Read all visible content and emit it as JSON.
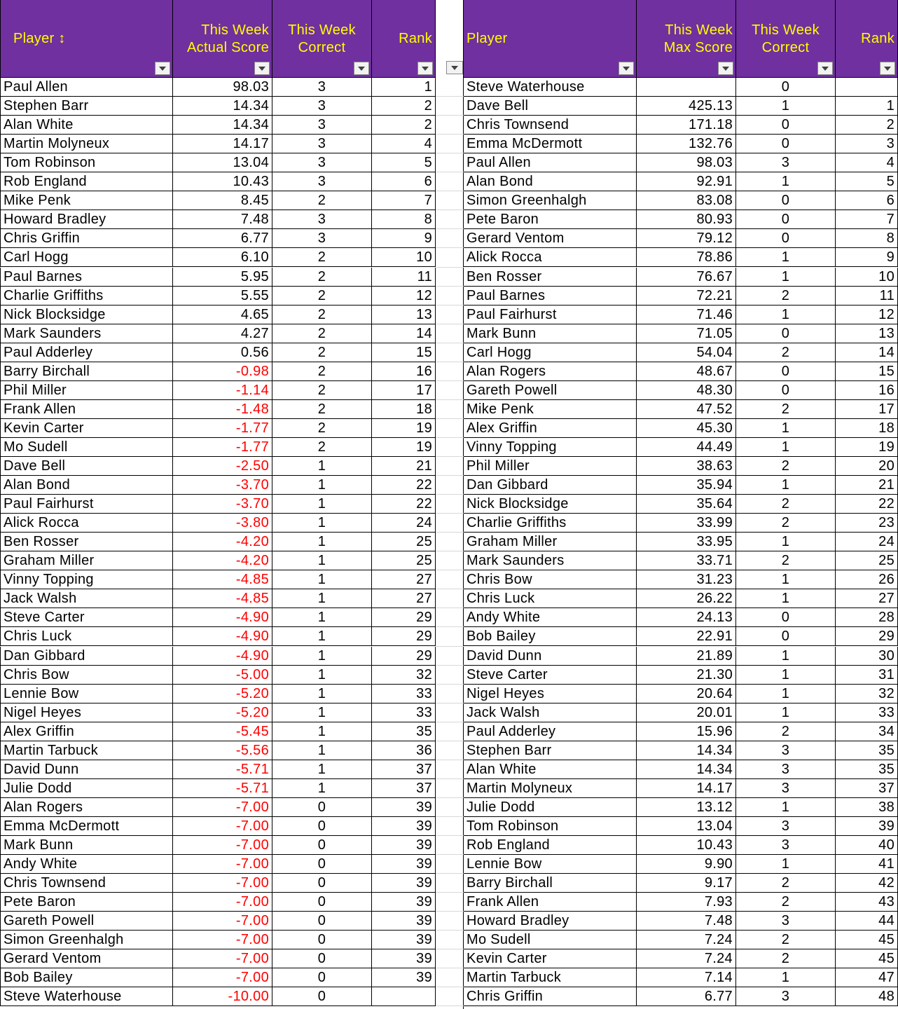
{
  "left_table": {
    "headers": {
      "player": "Player ↕",
      "actual_score": "This Week\nActual Score",
      "correct": "This Week\nCorrect",
      "rank": "Rank"
    },
    "rows": [
      [
        "Paul Allen",
        "98.03",
        "3",
        "1"
      ],
      [
        "Stephen Barr",
        "14.34",
        "3",
        "2"
      ],
      [
        "Alan White",
        "14.34",
        "3",
        "2"
      ],
      [
        "Martin Molyneux",
        "14.17",
        "3",
        "4"
      ],
      [
        "Tom Robinson",
        "13.04",
        "3",
        "5"
      ],
      [
        "Rob England",
        "10.43",
        "3",
        "6"
      ],
      [
        "Mike Penk",
        "8.45",
        "2",
        "7"
      ],
      [
        "Howard Bradley",
        "7.48",
        "3",
        "8"
      ],
      [
        "Chris Griffin",
        "6.77",
        "3",
        "9"
      ],
      [
        "Carl Hogg",
        "6.10",
        "2",
        "10"
      ],
      [
        "Paul Barnes",
        "5.95",
        "2",
        "11"
      ],
      [
        "Charlie Griffiths",
        "5.55",
        "2",
        "12"
      ],
      [
        "Nick Blocksidge",
        "4.65",
        "2",
        "13"
      ],
      [
        "Mark Saunders",
        "4.27",
        "2",
        "14"
      ],
      [
        "Paul Adderley",
        "0.56",
        "2",
        "15"
      ],
      [
        "Barry Birchall",
        "-0.98",
        "2",
        "16"
      ],
      [
        "Phil Miller",
        "-1.14",
        "2",
        "17"
      ],
      [
        "Frank Allen",
        "-1.48",
        "2",
        "18"
      ],
      [
        "Kevin Carter",
        "-1.77",
        "2",
        "19"
      ],
      [
        "Mo Sudell",
        "-1.77",
        "2",
        "19"
      ],
      [
        "Dave Bell",
        "-2.50",
        "1",
        "21"
      ],
      [
        "Alan Bond",
        "-3.70",
        "1",
        "22"
      ],
      [
        "Paul Fairhurst",
        "-3.70",
        "1",
        "22"
      ],
      [
        "Alick Rocca",
        "-3.80",
        "1",
        "24"
      ],
      [
        "Ben Rosser",
        "-4.20",
        "1",
        "25"
      ],
      [
        "Graham Miller",
        "-4.20",
        "1",
        "25"
      ],
      [
        "Vinny Topping",
        "-4.85",
        "1",
        "27"
      ],
      [
        "Jack Walsh",
        "-4.85",
        "1",
        "27"
      ],
      [
        "Steve Carter",
        "-4.90",
        "1",
        "29"
      ],
      [
        "Chris Luck",
        "-4.90",
        "1",
        "29"
      ],
      [
        "Dan Gibbard",
        "-4.90",
        "1",
        "29"
      ],
      [
        "Chris Bow",
        "-5.00",
        "1",
        "32"
      ],
      [
        "Lennie Bow",
        "-5.20",
        "1",
        "33"
      ],
      [
        "Nigel Heyes",
        "-5.20",
        "1",
        "33"
      ],
      [
        "Alex Griffin",
        "-5.45",
        "1",
        "35"
      ],
      [
        "Martin Tarbuck",
        "-5.56",
        "1",
        "36"
      ],
      [
        "David Dunn",
        "-5.71",
        "1",
        "37"
      ],
      [
        "Julie Dodd",
        "-5.71",
        "1",
        "37"
      ],
      [
        "Alan Rogers",
        "-7.00",
        "0",
        "39"
      ],
      [
        "Emma McDermott",
        "-7.00",
        "0",
        "39"
      ],
      [
        "Mark Bunn",
        "-7.00",
        "0",
        "39"
      ],
      [
        "Andy White",
        "-7.00",
        "0",
        "39"
      ],
      [
        "Chris Townsend",
        "-7.00",
        "0",
        "39"
      ],
      [
        "Pete Baron",
        "-7.00",
        "0",
        "39"
      ],
      [
        "Gareth Powell",
        "-7.00",
        "0",
        "39"
      ],
      [
        "Simon Greenhalgh",
        "-7.00",
        "0",
        "39"
      ],
      [
        "Gerard Ventom",
        "-7.00",
        "0",
        "39"
      ],
      [
        "Bob Bailey",
        "-7.00",
        "0",
        "39"
      ],
      [
        "Steve Waterhouse",
        "-10.00",
        "0",
        ""
      ]
    ]
  },
  "right_table": {
    "headers": {
      "player": "Player",
      "max_score": "This Week\nMax Score",
      "correct": "This Week\nCorrect",
      "rank": "Rank"
    },
    "rows": [
      [
        "Steve Waterhouse",
        "",
        "0",
        ""
      ],
      [
        "Dave Bell",
        "425.13",
        "1",
        "1"
      ],
      [
        "Chris Townsend",
        "171.18",
        "0",
        "2"
      ],
      [
        "Emma McDermott",
        "132.76",
        "0",
        "3"
      ],
      [
        "Paul Allen",
        "98.03",
        "3",
        "4"
      ],
      [
        "Alan Bond",
        "92.91",
        "1",
        "5"
      ],
      [
        "Simon Greenhalgh",
        "83.08",
        "0",
        "6"
      ],
      [
        "Pete Baron",
        "80.93",
        "0",
        "7"
      ],
      [
        "Gerard Ventom",
        "79.12",
        "0",
        "8"
      ],
      [
        "Alick Rocca",
        "78.86",
        "1",
        "9"
      ],
      [
        "Ben Rosser",
        "76.67",
        "1",
        "10"
      ],
      [
        "Paul Barnes",
        "72.21",
        "2",
        "11"
      ],
      [
        "Paul Fairhurst",
        "71.46",
        "1",
        "12"
      ],
      [
        "Mark Bunn",
        "71.05",
        "0",
        "13"
      ],
      [
        "Carl Hogg",
        "54.04",
        "2",
        "14"
      ],
      [
        "Alan Rogers",
        "48.67",
        "0",
        "15"
      ],
      [
        "Gareth Powell",
        "48.30",
        "0",
        "16"
      ],
      [
        "Mike Penk",
        "47.52",
        "2",
        "17"
      ],
      [
        "Alex Griffin",
        "45.30",
        "1",
        "18"
      ],
      [
        "Vinny Topping",
        "44.49",
        "1",
        "19"
      ],
      [
        "Phil Miller",
        "38.63",
        "2",
        "20"
      ],
      [
        "Dan Gibbard",
        "35.94",
        "1",
        "21"
      ],
      [
        "Nick Blocksidge",
        "35.64",
        "2",
        "22"
      ],
      [
        "Charlie Griffiths",
        "33.99",
        "2",
        "23"
      ],
      [
        "Graham Miller",
        "33.95",
        "1",
        "24"
      ],
      [
        "Mark Saunders",
        "33.71",
        "2",
        "25"
      ],
      [
        "Chris Bow",
        "31.23",
        "1",
        "26"
      ],
      [
        "Chris Luck",
        "26.22",
        "1",
        "27"
      ],
      [
        "Andy White",
        "24.13",
        "0",
        "28"
      ],
      [
        "Bob Bailey",
        "22.91",
        "0",
        "29"
      ],
      [
        "David Dunn",
        "21.89",
        "1",
        "30"
      ],
      [
        "Steve Carter",
        "21.30",
        "1",
        "31"
      ],
      [
        "Nigel Heyes",
        "20.64",
        "1",
        "32"
      ],
      [
        "Jack Walsh",
        "20.01",
        "1",
        "33"
      ],
      [
        "Paul Adderley",
        "15.96",
        "2",
        "34"
      ],
      [
        "Stephen Barr",
        "14.34",
        "3",
        "35"
      ],
      [
        "Alan White",
        "14.34",
        "3",
        "35"
      ],
      [
        "Martin Molyneux",
        "14.17",
        "3",
        "37"
      ],
      [
        "Julie Dodd",
        "13.12",
        "1",
        "38"
      ],
      [
        "Tom Robinson",
        "13.04",
        "3",
        "39"
      ],
      [
        "Rob England",
        "10.43",
        "3",
        "40"
      ],
      [
        "Lennie Bow",
        "9.90",
        "1",
        "41"
      ],
      [
        "Barry Birchall",
        "9.17",
        "2",
        "42"
      ],
      [
        "Frank Allen",
        "7.93",
        "2",
        "43"
      ],
      [
        "Howard Bradley",
        "7.48",
        "3",
        "44"
      ],
      [
        "Mo Sudell",
        "7.24",
        "2",
        "45"
      ],
      [
        "Kevin Carter",
        "7.24",
        "2",
        "45"
      ],
      [
        "Martin Tarbuck",
        "7.14",
        "1",
        "47"
      ],
      [
        "Chris Griffin",
        "6.77",
        "3",
        "48"
      ]
    ]
  },
  "colors": {
    "header_bg": "#7030a0",
    "header_text": "#ffff00",
    "negative_text": "#ff0000"
  }
}
